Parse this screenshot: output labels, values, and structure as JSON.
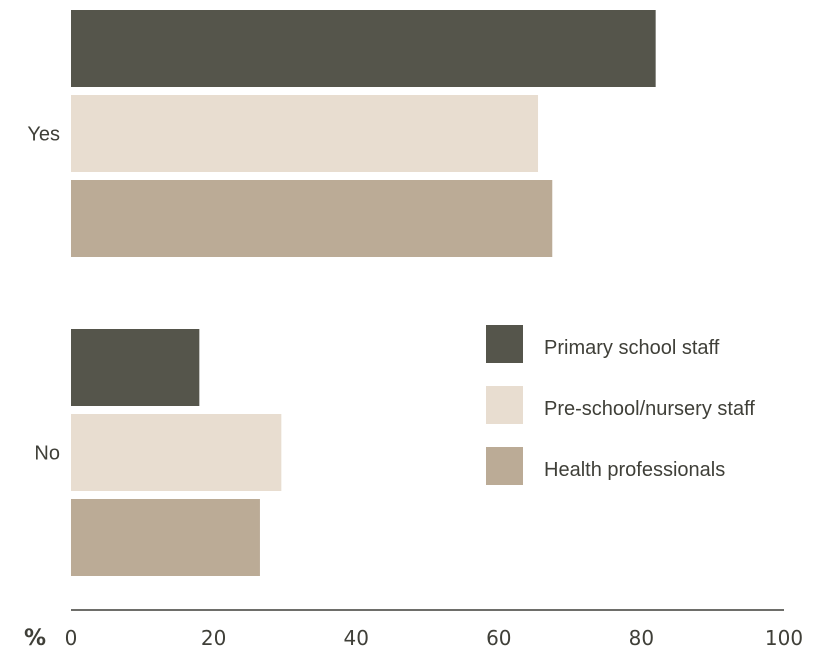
{
  "chart_data": {
    "type": "bar",
    "orientation": "horizontal",
    "categories": [
      "Yes",
      "No"
    ],
    "series": [
      {
        "name": "Primary school staff",
        "values": [
          82,
          18
        ],
        "color": "#55554b"
      },
      {
        "name": "Pre-school/nursery staff",
        "values": [
          65.5,
          29.5
        ],
        "color": "#e8ddd0"
      },
      {
        "name": "Health professionals",
        "values": [
          67.5,
          26.5
        ],
        "color": "#bbab96"
      }
    ],
    "x_ticks": [
      "0",
      "20",
      "40",
      "60",
      "80",
      "100"
    ],
    "xlim": [
      0,
      100
    ],
    "unit_label": "%",
    "legend_position": "center-right",
    "grid": false
  }
}
